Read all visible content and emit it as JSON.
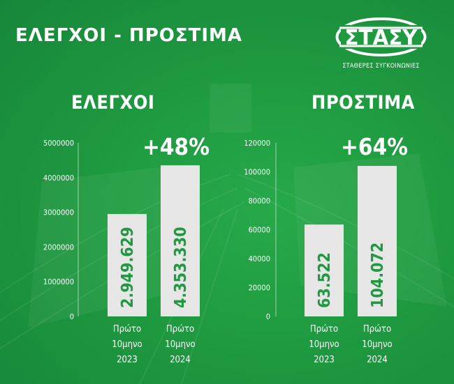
{
  "title": "ΕΛΕΓΧΟΙ - ΠΡΟΣΤΙΜΑ",
  "logo": {
    "mark_text": "ΣΤΑΣΥ",
    "subtitle": "ΣΤΑΘΕΡΕΣ ΣΥΓΚΟΙΝΩΝΙΕΣ"
  },
  "colors": {
    "background": "#1f9a40",
    "bar": "#e6e6e6",
    "bar_text": "#1f9a40",
    "text": "#ffffff"
  },
  "chart_data": [
    {
      "type": "bar",
      "title": "ΕΛΕΓΧΟΙ",
      "categories": [
        [
          "Πρώτο",
          "10μηνο",
          "2023"
        ],
        [
          "Πρώτο",
          "10μηνο",
          "2024"
        ]
      ],
      "values": [
        2949629,
        4353330
      ],
      "value_labels": [
        "2.949.629",
        "4.353.330"
      ],
      "change_label": "+48%",
      "yticks": [
        0,
        1000000,
        2000000,
        3000000,
        4000000,
        5000000
      ],
      "ytick_labels": [
        "0",
        "1000000",
        "2000000",
        "3000000",
        "4000000",
        "5000000"
      ],
      "ylim": [
        0,
        5000000
      ],
      "grid": false,
      "legend": "none"
    },
    {
      "type": "bar",
      "title": "ΠΡΟΣΤΙΜΑ",
      "categories": [
        [
          "Πρώτο",
          "10μηνο",
          "2023"
        ],
        [
          "Πρώτο",
          "10μηνο",
          "2024"
        ]
      ],
      "values": [
        63522,
        104072
      ],
      "value_labels": [
        "63.522",
        "104.072"
      ],
      "change_label": "+64%",
      "yticks": [
        0,
        20000,
        40000,
        60000,
        80000,
        100000,
        120000
      ],
      "ytick_labels": [
        "0",
        "20000",
        "40000",
        "60000",
        "80000",
        "100000",
        "120000"
      ],
      "ylim": [
        0,
        120000
      ],
      "grid": false,
      "legend": "none"
    }
  ]
}
